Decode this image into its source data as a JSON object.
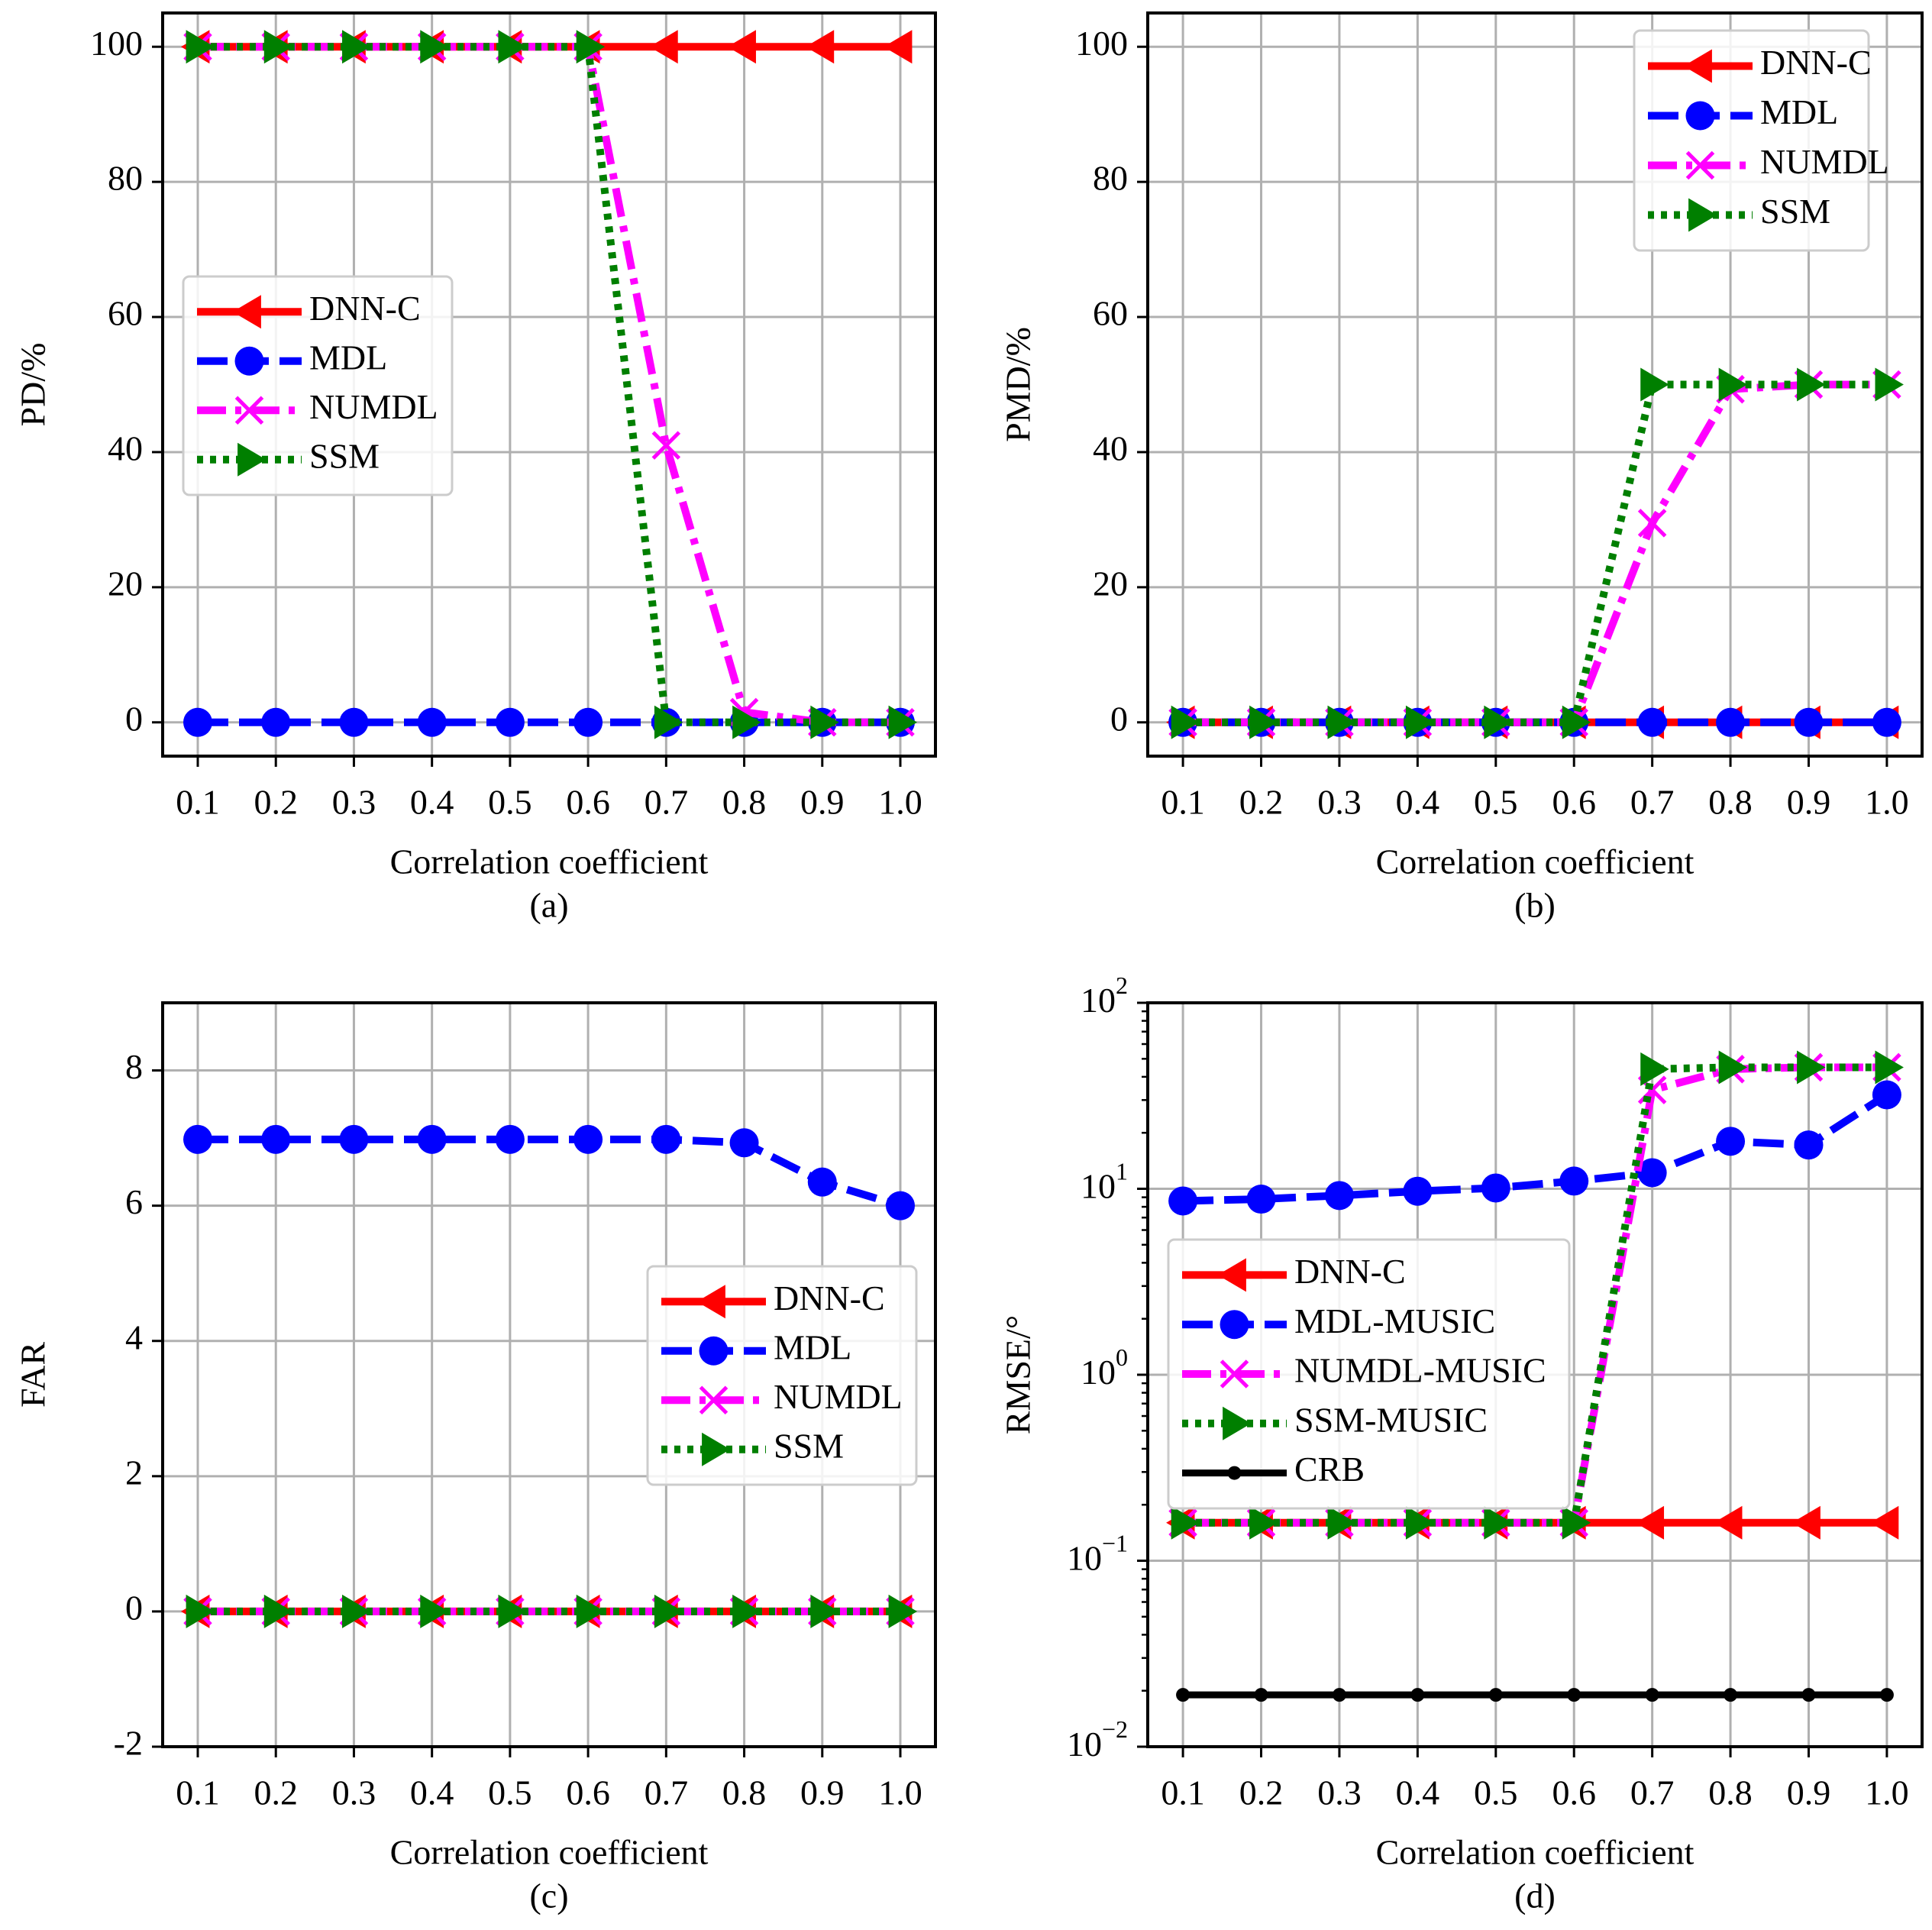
{
  "colors": {
    "dnnc": "#ff0000",
    "mdl": "#0000ff",
    "numdl": "#ff00ff",
    "ssm": "#007f00",
    "crb": "#000000",
    "grid": "#b0b0b0"
  },
  "chart_data": [
    {
      "id": "a",
      "type": "line",
      "caption": "(a)",
      "xlabel": "Correlation coefficient",
      "ylabel": "PD/%",
      "yscale": "linear",
      "x": [
        0.1,
        0.2,
        0.3,
        0.4,
        0.5,
        0.6,
        0.7,
        0.8,
        0.9,
        1.0
      ],
      "xtick_labels": [
        "0.1",
        "0.2",
        "0.3",
        "0.4",
        "0.5",
        "0.6",
        "0.7",
        "0.8",
        "0.9",
        "1.0"
      ],
      "ylim": [
        -5,
        105
      ],
      "yticks": [
        0,
        20,
        40,
        60,
        80,
        100
      ],
      "ytick_labels": [
        "0",
        "20",
        "40",
        "60",
        "80",
        "100"
      ],
      "grid": true,
      "legend_position": "center-left",
      "series": [
        {
          "key": "dnnc",
          "name": "DNN-C",
          "values": [
            100,
            100,
            100,
            100,
            100,
            100,
            100,
            100,
            100,
            100
          ]
        },
        {
          "key": "mdl",
          "name": "MDL",
          "values": [
            0,
            0,
            0,
            0,
            0,
            0,
            0,
            0,
            0,
            0
          ]
        },
        {
          "key": "numdl",
          "name": "NUMDL",
          "values": [
            100,
            100,
            100,
            100,
            100,
            100,
            41,
            1.5,
            0,
            0
          ]
        },
        {
          "key": "ssm",
          "name": "SSM",
          "values": [
            100,
            100,
            100,
            100,
            100,
            100,
            0,
            0,
            0,
            0
          ]
        }
      ]
    },
    {
      "id": "b",
      "type": "line",
      "caption": "(b)",
      "xlabel": "Correlation coefficient",
      "ylabel": "PMD/%",
      "yscale": "linear",
      "x": [
        0.1,
        0.2,
        0.3,
        0.4,
        0.5,
        0.6,
        0.7,
        0.8,
        0.9,
        1.0
      ],
      "xtick_labels": [
        "0.1",
        "0.2",
        "0.3",
        "0.4",
        "0.5",
        "0.6",
        "0.7",
        "0.8",
        "0.9",
        "1.0"
      ],
      "ylim": [
        -5,
        105
      ],
      "yticks": [
        0,
        20,
        40,
        60,
        80,
        100
      ],
      "ytick_labels": [
        "0",
        "20",
        "40",
        "60",
        "80",
        "100"
      ],
      "grid": true,
      "legend_position": "top-right",
      "series": [
        {
          "key": "dnnc",
          "name": "DNN-C",
          "values": [
            0,
            0,
            0,
            0,
            0,
            0,
            0,
            0,
            0,
            0
          ]
        },
        {
          "key": "mdl",
          "name": "MDL",
          "values": [
            0,
            0,
            0,
            0,
            0,
            0,
            0,
            0,
            0,
            0
          ]
        },
        {
          "key": "numdl",
          "name": "NUMDL",
          "values": [
            0,
            0,
            0,
            0,
            0,
            0,
            29.5,
            49.3,
            50,
            50
          ]
        },
        {
          "key": "ssm",
          "name": "SSM",
          "values": [
            0,
            0,
            0,
            0,
            0,
            0,
            50,
            50,
            50,
            50
          ]
        }
      ]
    },
    {
      "id": "c",
      "type": "line",
      "caption": "(c)",
      "xlabel": "Correlation coefficient",
      "ylabel": "FAR",
      "yscale": "linear",
      "x": [
        0.1,
        0.2,
        0.3,
        0.4,
        0.5,
        0.6,
        0.7,
        0.8,
        0.9,
        1.0
      ],
      "xtick_labels": [
        "0.1",
        "0.2",
        "0.3",
        "0.4",
        "0.5",
        "0.6",
        "0.7",
        "0.8",
        "0.9",
        "1.0"
      ],
      "ylim": [
        -2,
        9
      ],
      "yticks": [
        -2,
        0,
        2,
        4,
        6,
        8
      ],
      "ytick_labels": [
        "-2",
        "0",
        "2",
        "4",
        "6",
        "8"
      ],
      "grid": true,
      "legend_position": "center-right",
      "series": [
        {
          "key": "dnnc",
          "name": "DNN-C",
          "values": [
            0,
            0,
            0,
            0,
            0,
            0,
            0,
            0,
            0,
            0
          ]
        },
        {
          "key": "mdl",
          "name": "MDL",
          "values": [
            6.98,
            6.98,
            6.98,
            6.98,
            6.98,
            6.98,
            6.98,
            6.93,
            6.35,
            6.0
          ]
        },
        {
          "key": "numdl",
          "name": "NUMDL",
          "values": [
            0,
            0,
            0,
            0,
            0,
            0,
            0,
            0,
            0,
            0
          ]
        },
        {
          "key": "ssm",
          "name": "SSM",
          "values": [
            0,
            0,
            0,
            0,
            0,
            0,
            0,
            0,
            0,
            0
          ]
        }
      ]
    },
    {
      "id": "d",
      "type": "line",
      "caption": "(d)",
      "xlabel": "Correlation coefficient",
      "ylabel": "RMSE/°",
      "yscale": "log",
      "x": [
        0.1,
        0.2,
        0.3,
        0.4,
        0.5,
        0.6,
        0.7,
        0.8,
        0.9,
        1.0
      ],
      "xtick_labels": [
        "0.1",
        "0.2",
        "0.3",
        "0.4",
        "0.5",
        "0.6",
        "0.7",
        "0.8",
        "0.9",
        "1.0"
      ],
      "ylim": [
        0.01,
        100
      ],
      "yticks": [
        0.01,
        0.1,
        1,
        10,
        100
      ],
      "ytick_labels": [
        {
          "base": "10",
          "exp": "−2"
        },
        {
          "base": "10",
          "exp": "−1"
        },
        {
          "base": "10",
          "exp": "0"
        },
        {
          "base": "10",
          "exp": "1"
        },
        {
          "base": "10",
          "exp": "2"
        }
      ],
      "grid": true,
      "legend_position": "center-left",
      "series": [
        {
          "key": "dnnc",
          "name": "DNN-C",
          "values": [
            0.16,
            0.16,
            0.16,
            0.16,
            0.16,
            0.16,
            0.16,
            0.16,
            0.16,
            0.16
          ]
        },
        {
          "key": "mdl",
          "name": "MDL-MUSIC",
          "values": [
            8.6,
            8.8,
            9.2,
            9.7,
            10.1,
            11.0,
            12.2,
            18.0,
            17.2,
            32.0
          ]
        },
        {
          "key": "numdl",
          "name": "NUMDL-MUSIC",
          "values": [
            0.16,
            0.16,
            0.16,
            0.16,
            0.16,
            0.16,
            34,
            44,
            45,
            45
          ]
        },
        {
          "key": "ssm",
          "name": "SSM-MUSIC",
          "values": [
            0.16,
            0.16,
            0.16,
            0.16,
            0.16,
            0.16,
            44,
            45,
            45,
            45
          ]
        },
        {
          "key": "crb",
          "name": "CRB",
          "values": [
            0.019,
            0.019,
            0.019,
            0.019,
            0.019,
            0.019,
            0.019,
            0.019,
            0.019,
            0.019
          ]
        }
      ]
    }
  ]
}
